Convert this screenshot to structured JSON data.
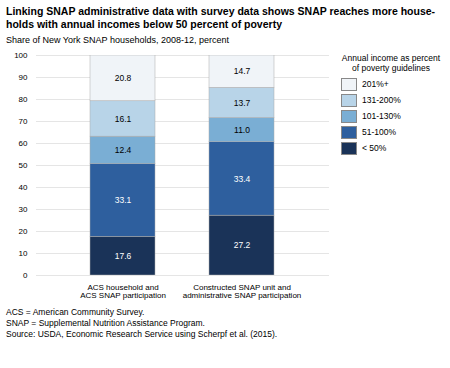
{
  "chart_data": {
    "type": "bar",
    "stacked": true,
    "title": "Linking SNAP administrative data with survey data shows SNAP reaches more house-\nholds with annual incomes below 50 percent of poverty",
    "subtitle": "Share of New York SNAP households, 2008-12, percent",
    "categories": [
      "ACS household and\nACS SNAP participation",
      "Constructed SNAP unit and\nadministrative SNAP participation"
    ],
    "series": [
      {
        "name": "< 50%",
        "color": "#1a3358",
        "values": [
          17.6,
          27.2
        ]
      },
      {
        "name": "51-100%",
        "color": "#2e5f9e",
        "values": [
          33.1,
          33.4
        ]
      },
      {
        "name": "101-130%",
        "color": "#7aaed4",
        "values": [
          12.4,
          11.0
        ],
        "value_labels": [
          "12.4",
          "11.0"
        ]
      },
      {
        "name": "131-200%",
        "color": "#b8d4e8",
        "values": [
          16.1,
          13.7
        ]
      },
      {
        "name": "201%+",
        "color": "#f0f4f8",
        "values": [
          20.8,
          14.7
        ]
      }
    ],
    "legend_title": "Annual income as percent\nof poverty guidelines",
    "legend": "right",
    "ylim": [
      0,
      100
    ],
    "yticks": [
      0,
      10,
      20,
      30,
      40,
      50,
      60,
      70,
      80,
      90,
      100
    ],
    "grid": true,
    "data_labels": true,
    "footnote": "ACS = American Community Survey.\nSNAP = Supplemental Nutrition Assistance Program.\nSource: USDA, Economic Research Service using Scherpf et al. (2015)."
  }
}
